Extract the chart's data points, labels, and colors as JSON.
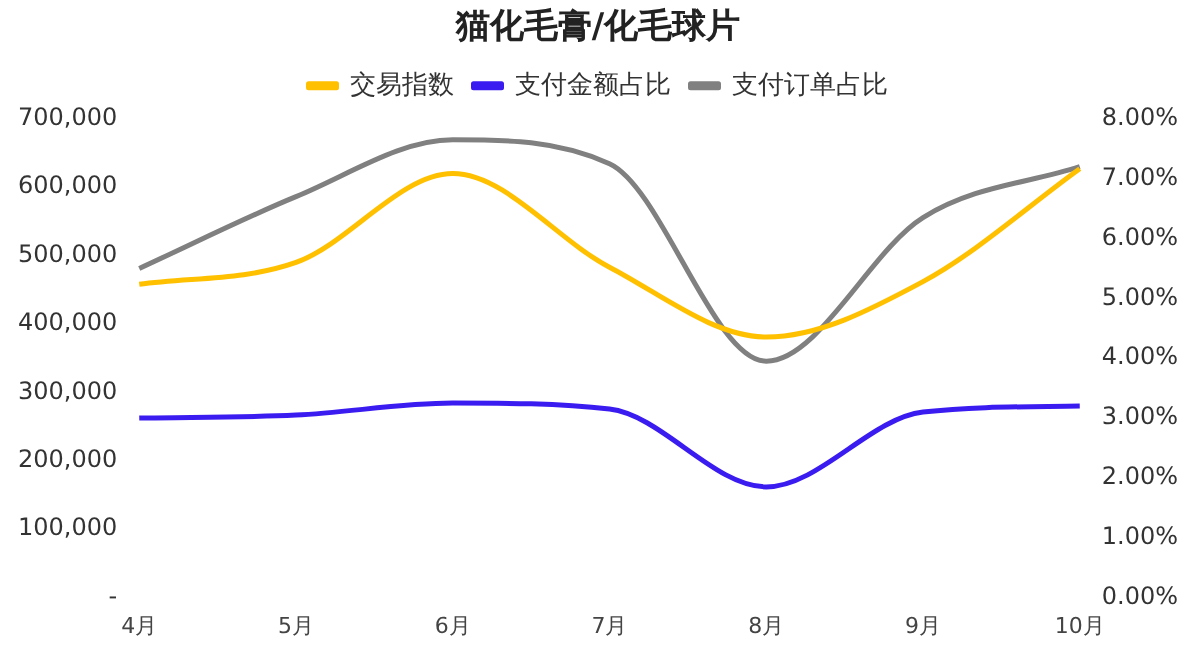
{
  "chart_data": {
    "type": "line",
    "title": "猫化毛膏/化毛球片",
    "categories": [
      "4月",
      "5月",
      "6月",
      "7月",
      "8月",
      "9月",
      "10月"
    ],
    "series": [
      {
        "name": "交易指数",
        "color": "#ffc000",
        "values": [
          458000,
          490000,
          620000,
          483000,
          381000,
          462000,
          627000
        ]
      },
      {
        "name": "支付金额占比",
        "color": "#3a1cf0",
        "axis": "y2",
        "values": [
          3.0,
          3.05,
          3.25,
          3.15,
          1.85,
          3.1,
          3.2
        ]
      },
      {
        "name": "支付订单占比",
        "color": "#808080",
        "axis": "y2",
        "values": [
          5.5,
          6.7,
          7.65,
          7.25,
          3.95,
          6.35,
          7.2
        ]
      }
    ],
    "ylim": [
      0,
      700000
    ],
    "yticks": [
      {
        "value": 0,
        "label": "-"
      },
      {
        "value": 100000,
        "label": "100,000"
      },
      {
        "value": 200000,
        "label": "200,000"
      },
      {
        "value": 300000,
        "label": "300,000"
      },
      {
        "value": 400000,
        "label": "400,000"
      },
      {
        "value": 500000,
        "label": "500,000"
      },
      {
        "value": 600000,
        "label": "600,000"
      },
      {
        "value": 700000,
        "label": "700,000"
      }
    ],
    "y2lim": [
      0,
      8
    ],
    "y2ticks": [
      {
        "value": 0,
        "label": "0.00%"
      },
      {
        "value": 1,
        "label": "1.00%"
      },
      {
        "value": 2,
        "label": "2.00%"
      },
      {
        "value": 3,
        "label": "3.00%"
      },
      {
        "value": 4,
        "label": "4.00%"
      },
      {
        "value": 5,
        "label": "5.00%"
      },
      {
        "value": 6,
        "label": "6.00%"
      },
      {
        "value": 7,
        "label": "7.00%"
      },
      {
        "value": 8,
        "label": "8.00%"
      }
    ],
    "grid": false,
    "legend": "top",
    "marker": "none",
    "line_style": "solid"
  }
}
